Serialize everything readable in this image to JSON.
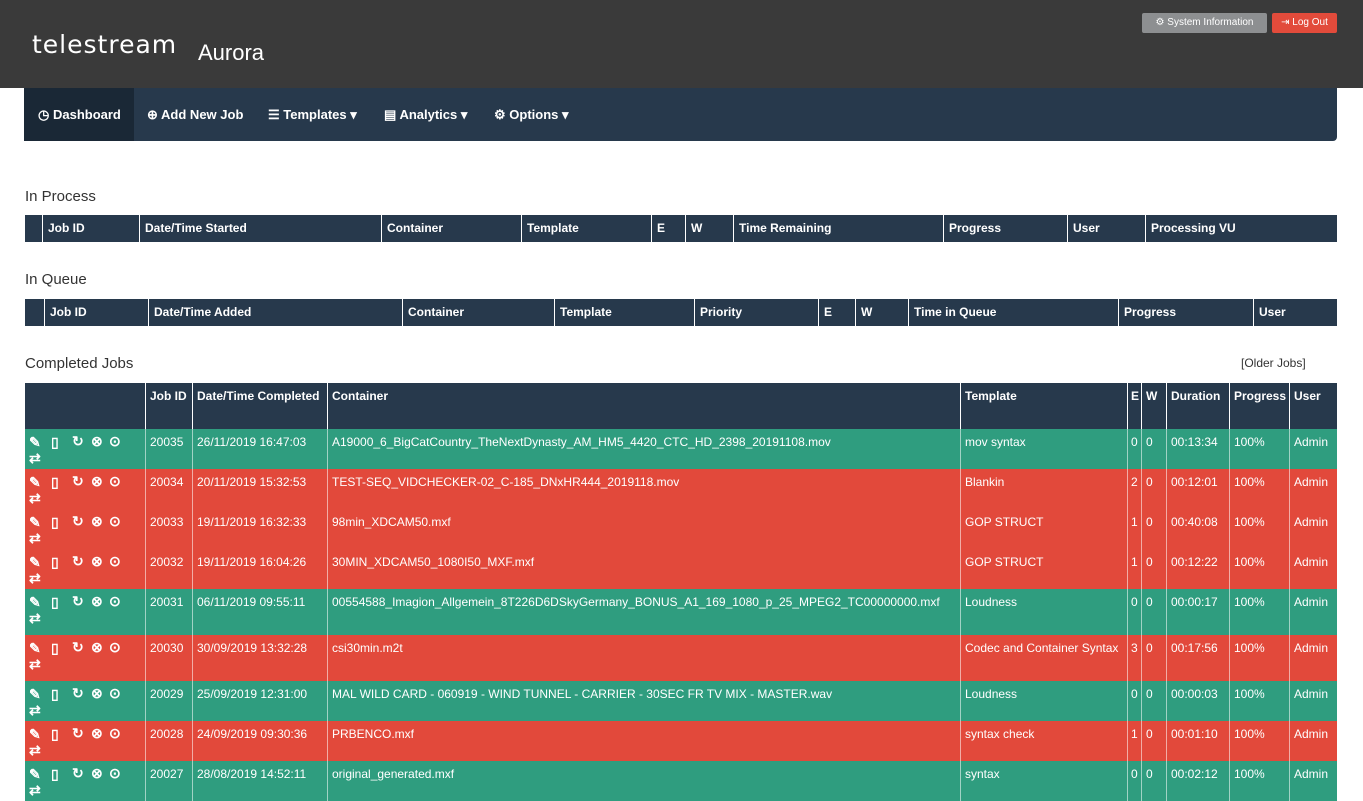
{
  "brand": {
    "logo": "telestream",
    "product": "Aurora"
  },
  "top_buttons": {
    "system_info": "System Information",
    "logout": "Log Out"
  },
  "nav": {
    "dashboard": "Dashboard",
    "add_new_job": "Add New Job",
    "templates": "Templates",
    "analytics": "Analytics",
    "options": "Options"
  },
  "in_process": {
    "title": "In Process",
    "columns": [
      "Job ID",
      "Date/Time Started",
      "Container",
      "Template",
      "E",
      "W",
      "Time Remaining",
      "Progress",
      "User",
      "Processing VU"
    ]
  },
  "in_queue": {
    "title": "In Queue",
    "columns": [
      "Job ID",
      "Date/Time Added",
      "Container",
      "Template",
      "Priority",
      "E",
      "W",
      "Time in Queue",
      "Progress",
      "User"
    ]
  },
  "completed": {
    "title": "Completed Jobs",
    "older_link": "[Older Jobs]",
    "columns": [
      "Job ID",
      "Date/Time Completed",
      "Container",
      "Template",
      "E",
      "W",
      "Duration",
      "Progress",
      "User"
    ],
    "rows": [
      {
        "status": "pass",
        "id": "20035",
        "date": "26/11/2019 16:47:03",
        "container": "A19000_6_BigCatCountry_TheNextDynasty_AM_HM5_4420_CTC_HD_2398_20191108.mov",
        "template": "mov syntax",
        "e": "0",
        "w": "0",
        "duration": "00:13:34",
        "progress": "100%",
        "user": "Admin"
      },
      {
        "status": "fail",
        "id": "20034",
        "date": "20/11/2019 15:32:53",
        "container": "TEST-SEQ_VIDCHECKER-02_C-185_DNxHR444_2019118.mov",
        "template": "Blankin",
        "e": "2",
        "w": "0",
        "duration": "00:12:01",
        "progress": "100%",
        "user": "Admin"
      },
      {
        "status": "fail",
        "id": "20033",
        "date": "19/11/2019 16:32:33",
        "container": "98min_XDCAM50.mxf",
        "template": "GOP STRUCT",
        "e": "1",
        "w": "0",
        "duration": "00:40:08",
        "progress": "100%",
        "user": "Admin"
      },
      {
        "status": "fail",
        "id": "20032",
        "date": "19/11/2019 16:04:26",
        "container": "30MIN_XDCAM50_1080I50_MXF.mxf",
        "template": "GOP STRUCT",
        "e": "1",
        "w": "0",
        "duration": "00:12:22",
        "progress": "100%",
        "user": "Admin"
      },
      {
        "status": "pass",
        "id": "20031",
        "date": "06/11/2019 09:55:11",
        "container": "00554588_Imagion_Allgemein_8T226D6DSkyGermany_BONUS_A1_169_1080_p_25_MPEG2_TC00000000.mxf",
        "template": "Loudness",
        "e": "0",
        "w": "0",
        "duration": "00:00:17",
        "progress": "100%",
        "user": "Admin"
      },
      {
        "status": "fail",
        "id": "20030",
        "date": "30/09/2019 13:32:28",
        "container": "csi30min.m2t",
        "template": "Codec and Container Syntax",
        "e": "3",
        "w": "0",
        "duration": "00:17:56",
        "progress": "100%",
        "user": "Admin"
      },
      {
        "status": "pass",
        "id": "20029",
        "date": "25/09/2019 12:31:00",
        "container": "MAL WILD CARD - 060919 - WIND TUNNEL - CARRIER - 30SEC FR TV MIX - MASTER.wav",
        "template": "Loudness",
        "e": "0",
        "w": "0",
        "duration": "00:00:03",
        "progress": "100%",
        "user": "Admin"
      },
      {
        "status": "fail",
        "id": "20028",
        "date": "24/09/2019 09:30:36",
        "container": "PRBENCO.mxf",
        "template": "syntax check",
        "e": "1",
        "w": "0",
        "duration": "00:01:10",
        "progress": "100%",
        "user": "Admin"
      },
      {
        "status": "pass",
        "id": "20027",
        "date": "28/08/2019 14:52:11",
        "container": "original_generated.mxf",
        "template": "syntax",
        "e": "0",
        "w": "0",
        "duration": "00:02:12",
        "progress": "100%",
        "user": "Admin"
      }
    ]
  },
  "colors": {
    "pass": "#2f9d7f",
    "fail": "#e2493b",
    "header": "#27394c",
    "topbar": "#3a3a3a"
  },
  "row_icons": [
    "edit-icon",
    "pdf-icon",
    "retry-icon",
    "cancel-icon",
    "play-icon",
    "transfer-icon"
  ]
}
